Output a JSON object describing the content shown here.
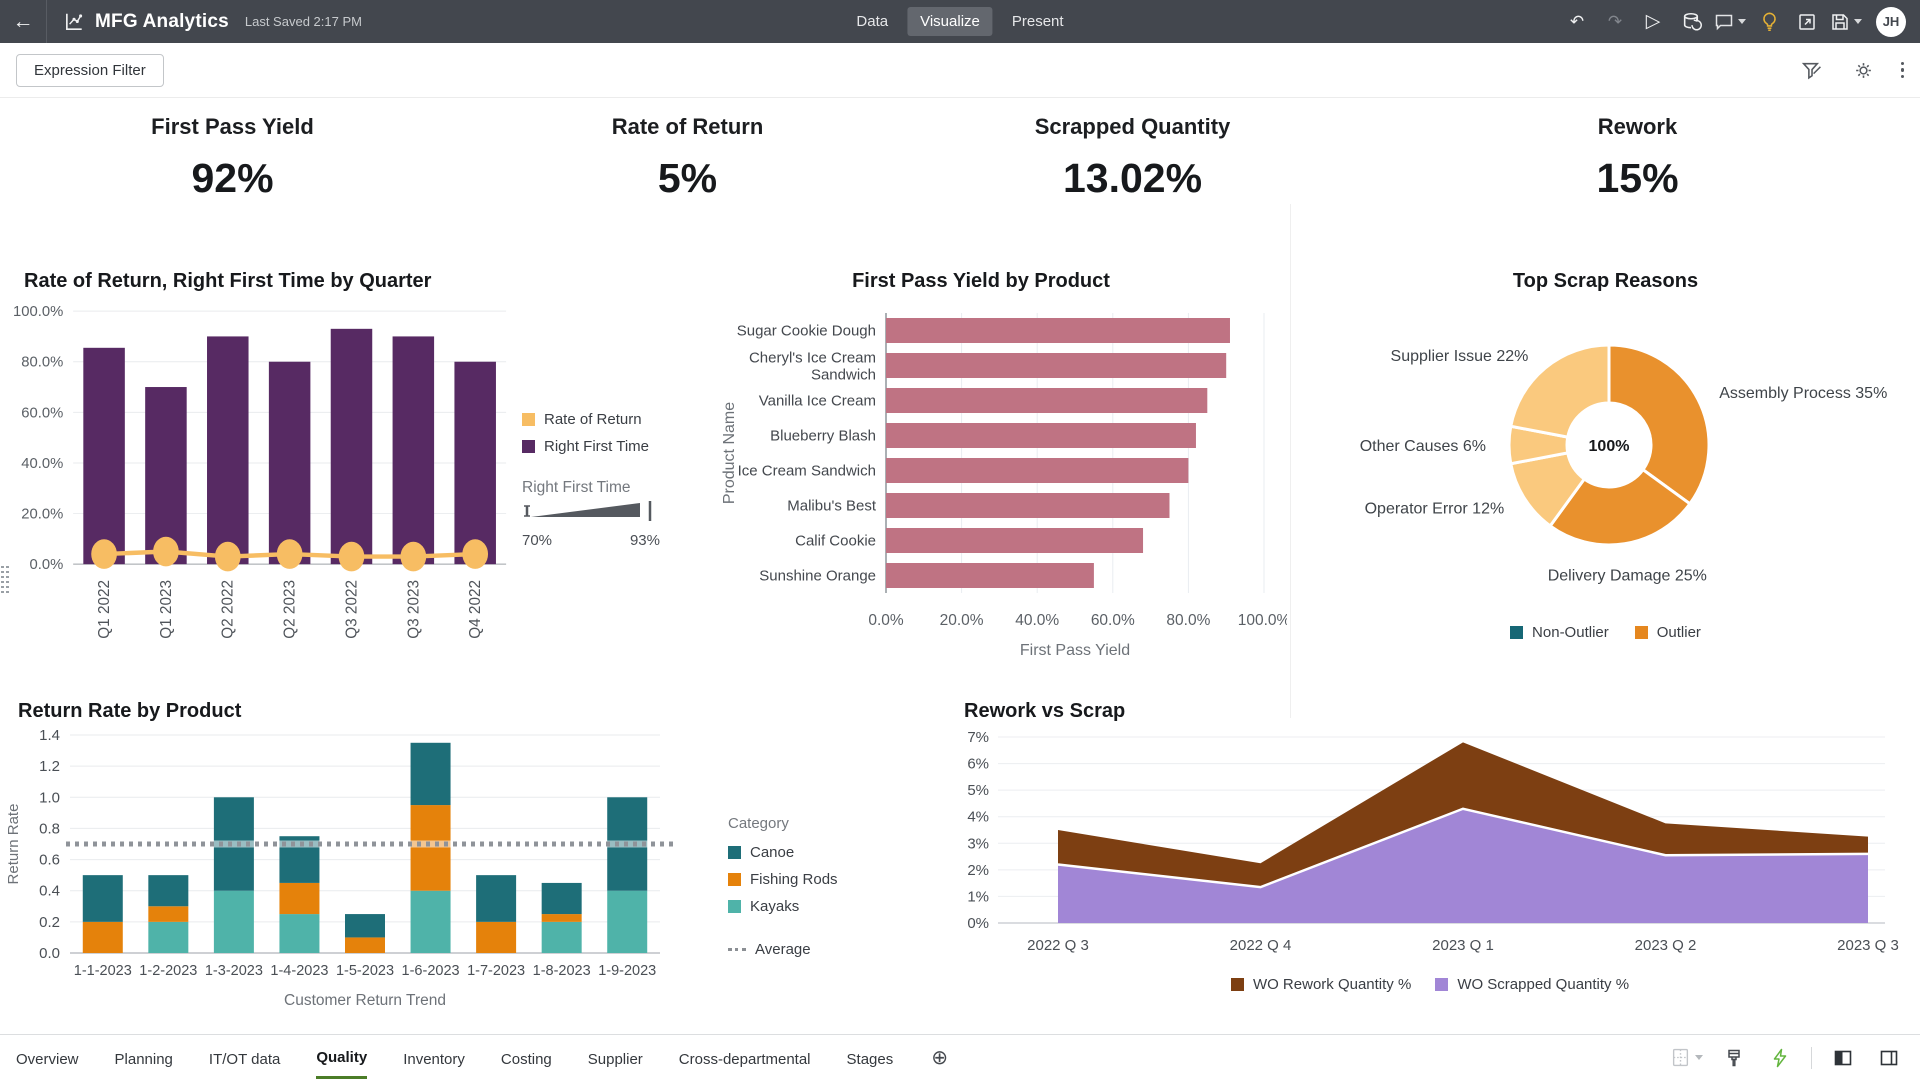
{
  "header": {
    "app_title": "MFG Analytics",
    "last_saved": "Last Saved 2:17 PM",
    "nav_tabs": [
      {
        "label": "Data",
        "active": false
      },
      {
        "label": "Visualize",
        "active": true
      },
      {
        "label": "Present",
        "active": false
      }
    ],
    "avatar_initials": "JH"
  },
  "toolbar": {
    "expression_filter": "Expression Filter"
  },
  "kpis": [
    {
      "label": "First Pass Yield",
      "value": "92%"
    },
    {
      "label": "Rate of Return",
      "value": "5%"
    },
    {
      "label": "Scrapped Quantity",
      "value": "13.02%"
    },
    {
      "label": "Rework",
      "value": "15%"
    }
  ],
  "charts": {
    "quarter": {
      "type": "combo-bar-line",
      "title": "Rate of Return, Right First Time by Quarter",
      "categories": [
        "Q1 2022",
        "Q1 2023",
        "Q2 2022",
        "Q2 2023",
        "Q3 2022",
        "Q3 2023",
        "Q4 2022"
      ],
      "bar_series": {
        "name": "Right First Time",
        "color": "#572a63",
        "values": [
          85.5,
          70,
          90,
          80,
          93,
          90,
          80
        ]
      },
      "line_series": {
        "name": "Rate of Return",
        "color": "#f7bd63",
        "values": [
          4,
          5,
          3,
          4,
          3,
          3,
          4
        ]
      },
      "ylim": [
        0,
        100
      ],
      "ytick_step": 20,
      "legend": [
        {
          "label": "Rate of Return",
          "color": "#f7bd63"
        },
        {
          "label": "Right First Time",
          "color": "#572a63"
        }
      ],
      "slider": {
        "label": "Right First Time",
        "min": "70%",
        "max": "93%"
      }
    },
    "fpy": {
      "type": "bar-horizontal",
      "title": "First Pass Yield by Product",
      "categories": [
        "Sugar Cookie Dough",
        "Cheryl's Ice Cream Sandwich",
        "Vanilla Ice Cream",
        "Blueberry Blash",
        "Ice Cream Sandwich",
        "Malibu's Best",
        "Calif Cookie",
        "Sunshine Orange"
      ],
      "values": [
        91,
        90,
        85,
        82,
        80,
        75,
        68,
        55
      ],
      "color": "#bf7383",
      "xlabel": "First Pass Yield",
      "ylabel": "Product Name",
      "xlim": [
        0,
        100
      ],
      "xtick_step": 20
    },
    "scrap": {
      "type": "donut",
      "title": "Top Scrap Reasons",
      "slices": [
        {
          "label": "Assembly Process",
          "pct": 35,
          "outlier": true
        },
        {
          "label": "Delivery Damage",
          "pct": 25,
          "outlier": true
        },
        {
          "label": "Operator Error",
          "pct": 12,
          "outlier": false
        },
        {
          "label": "Other Causes",
          "pct": 6,
          "outlier": false
        },
        {
          "label": "Supplier Issue",
          "pct": 22,
          "outlier": false
        }
      ],
      "center_label": "100%",
      "slice_colors": {
        "outlier": "#e9912d",
        "non_outlier": "#fac97e"
      },
      "legend": [
        {
          "label": "Non-Outlier",
          "color": "#166775"
        },
        {
          "label": "Outlier",
          "color": "#e5871f"
        }
      ]
    },
    "return_rate": {
      "type": "bar-stacked",
      "title": "Return Rate by Product",
      "categories": [
        "1-1-2023",
        "1-2-2023",
        "1-3-2023",
        "1-4-2023",
        "1-5-2023",
        "1-6-2023",
        "1-7-2023",
        "1-8-2023",
        "1-9-2023"
      ],
      "series": [
        {
          "name": "Kayaks",
          "color": "#4fb3a9",
          "values": [
            0,
            0.2,
            0.4,
            0.25,
            0,
            0.4,
            0,
            0.2,
            0.4
          ]
        },
        {
          "name": "Fishing Rods",
          "color": "#e5820b",
          "values": [
            0.2,
            0.1,
            0,
            0.2,
            0.1,
            0.55,
            0.2,
            0.05,
            0
          ]
        },
        {
          "name": "Canoe",
          "color": "#1e6e78",
          "values": [
            0.3,
            0.2,
            0.6,
            0.3,
            0.15,
            0.4,
            0.3,
            0.2,
            0.6
          ]
        }
      ],
      "average": 0.7,
      "ylim": [
        0,
        1.4
      ],
      "ytick_step": 0.2,
      "xlabel": "Customer Return Trend",
      "ylabel": "Return Rate",
      "legend_title": "Category",
      "legend": [
        {
          "label": "Canoe",
          "color": "#1e6e78"
        },
        {
          "label": "Fishing Rods",
          "color": "#e5820b"
        },
        {
          "label": "Kayaks",
          "color": "#4fb3a9"
        }
      ],
      "average_label": "Average"
    },
    "rework": {
      "type": "area-stacked",
      "title": "Rework vs Scrap",
      "x": [
        "2022 Q 3",
        "2022 Q 4",
        "2023 Q 1",
        "2023 Q 2",
        "2023 Q 3"
      ],
      "scrapped": {
        "name": "WO Scrapped Quantity %",
        "color": "#a186d6",
        "values": [
          2.2,
          1.35,
          4.3,
          2.55,
          2.6
        ]
      },
      "rework": {
        "name": "WO Rework Quantity %",
        "color": "#7d3f12",
        "values": [
          1.3,
          0.9,
          2.5,
          1.2,
          0.65
        ]
      },
      "totals": [
        3.5,
        2.25,
        6.8,
        3.75,
        3.25
      ],
      "ylim": [
        0,
        7
      ],
      "legend": [
        {
          "label": "WO Rework Quantity %",
          "color": "#7d3f12"
        },
        {
          "label": "WO Scrapped Quantity %",
          "color": "#a186d6"
        }
      ]
    }
  },
  "footer": {
    "tabs": [
      {
        "label": "Overview",
        "active": false
      },
      {
        "label": "Planning",
        "active": false
      },
      {
        "label": "IT/OT data",
        "active": false
      },
      {
        "label": "Quality",
        "active": true
      },
      {
        "label": "Inventory",
        "active": false
      },
      {
        "label": "Costing",
        "active": false
      },
      {
        "label": "Supplier",
        "active": false
      },
      {
        "label": "Cross-departmental",
        "active": false
      },
      {
        "label": "Stages",
        "active": false
      }
    ]
  }
}
